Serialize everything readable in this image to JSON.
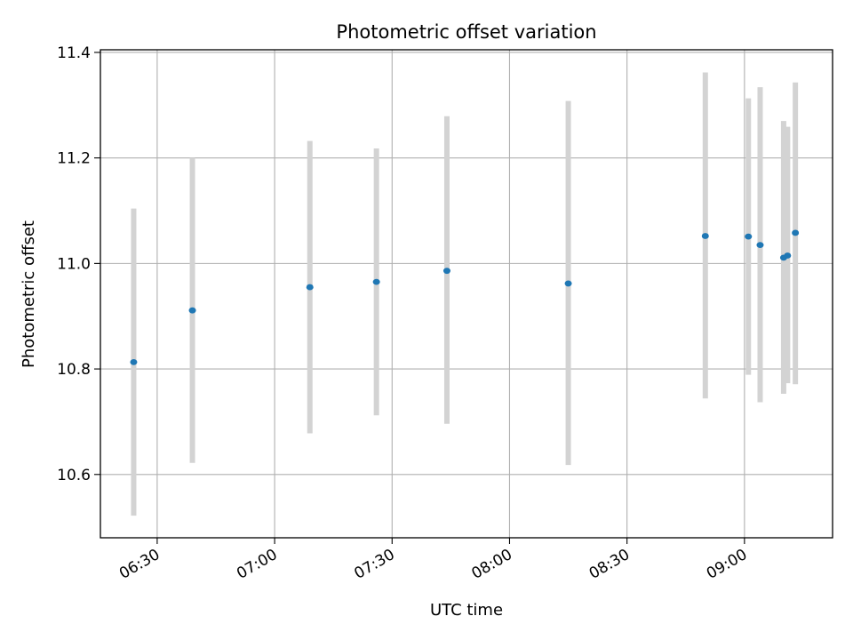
{
  "chart_data": {
    "type": "scatter",
    "title": "Photometric offset variation",
    "xlabel": "UTC time",
    "ylabel": "Photometric offset",
    "x_axis_type": "time",
    "xlim": [
      "06:15:30",
      "09:22:30"
    ],
    "ylim": [
      10.48,
      11.405
    ],
    "x_ticks": [
      "06:30",
      "07:00",
      "07:30",
      "08:00",
      "08:30",
      "09:00"
    ],
    "y_ticks": [
      10.6,
      10.8,
      11.0,
      11.2,
      11.4
    ],
    "y_tick_labels": [
      "10.6",
      "10.8",
      "11.0",
      "11.2",
      "11.4"
    ],
    "grid": true,
    "marker_color": "#1f77b4",
    "errorbar_color": "#d3d3d3",
    "points": [
      {
        "time": "06:24",
        "value": 10.813,
        "low": 10.522,
        "high": 11.104
      },
      {
        "time": "06:39",
        "value": 10.911,
        "low": 10.622,
        "high": 11.2
      },
      {
        "time": "07:09",
        "value": 10.955,
        "low": 10.678,
        "high": 11.232
      },
      {
        "time": "07:26",
        "value": 10.965,
        "low": 10.712,
        "high": 11.218
      },
      {
        "time": "07:44",
        "value": 10.986,
        "low": 10.696,
        "high": 11.279
      },
      {
        "time": "08:15",
        "value": 10.962,
        "low": 10.618,
        "high": 11.308
      },
      {
        "time": "08:50",
        "value": 11.052,
        "low": 10.744,
        "high": 11.362
      },
      {
        "time": "09:01",
        "value": 11.051,
        "low": 10.789,
        "high": 11.313
      },
      {
        "time": "09:04",
        "value": 11.035,
        "low": 10.737,
        "high": 11.334
      },
      {
        "time": "09:10",
        "value": 11.011,
        "low": 10.753,
        "high": 11.27
      },
      {
        "time": "09:11",
        "value": 11.015,
        "low": 10.773,
        "high": 11.259
      },
      {
        "time": "09:13",
        "value": 11.058,
        "low": 10.771,
        "high": 11.343
      }
    ]
  }
}
